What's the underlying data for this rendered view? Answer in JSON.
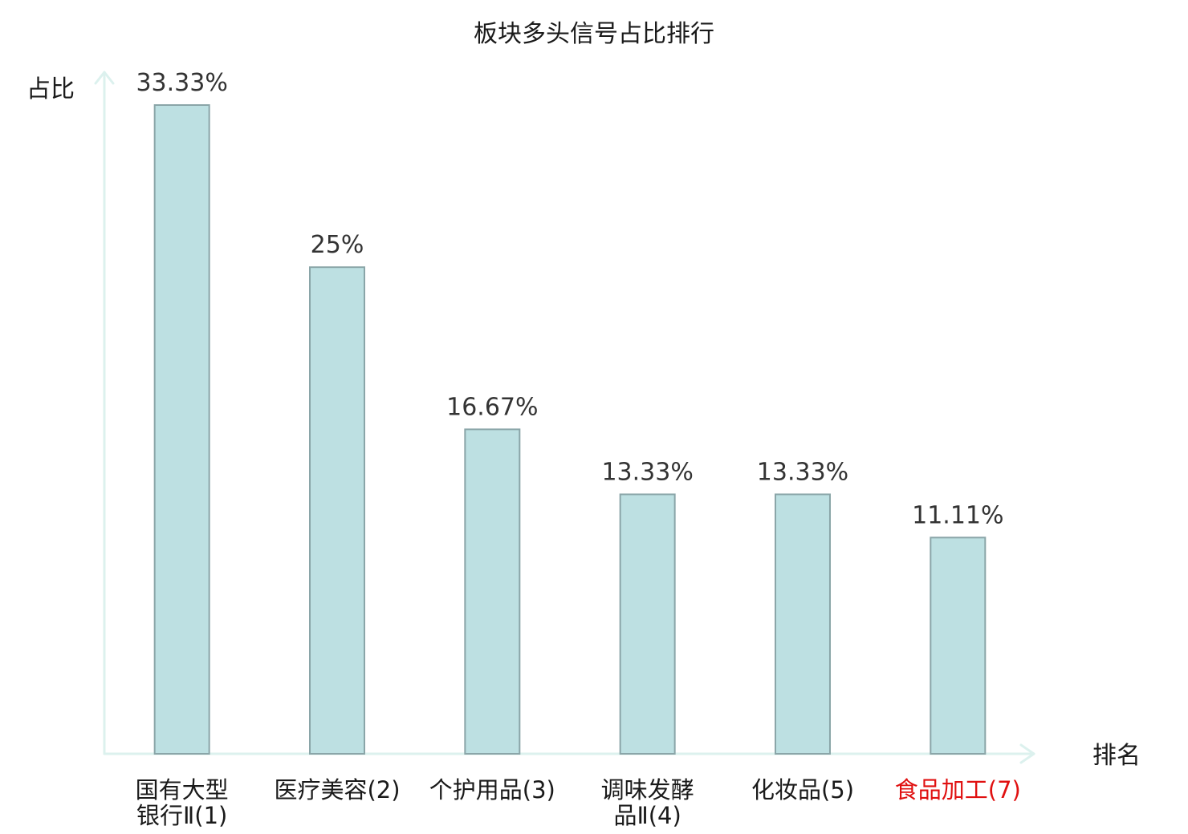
{
  "chart_data": {
    "type": "bar",
    "title": "板块多头信号占比排行",
    "xlabel": "排名",
    "ylabel": "占比",
    "categories": [
      {
        "text": "国有大型银行Ⅱ(1)",
        "lines": [
          "国有大型",
          "银行Ⅱ(1)"
        ],
        "highlight": false
      },
      {
        "text": "医疗美容(2)",
        "lines": [
          "医疗美容(2)"
        ],
        "highlight": false
      },
      {
        "text": "个护用品(3)",
        "lines": [
          "个护用品(3)"
        ],
        "highlight": false
      },
      {
        "text": "调味发酵品Ⅱ(4)",
        "lines": [
          "调味发酵",
          "品Ⅱ(4)"
        ],
        "highlight": false
      },
      {
        "text": "化妆品(5)",
        "lines": [
          "化妆品(5)"
        ],
        "highlight": false
      },
      {
        "text": "食品加工(7)",
        "lines": [
          "食品加工(7)"
        ],
        "highlight": true
      }
    ],
    "values": [
      33.33,
      25,
      16.67,
      13.33,
      13.33,
      11.11
    ],
    "value_labels": [
      "33.33%",
      "25%",
      "16.67%",
      "13.33%",
      "13.33%",
      "11.11%"
    ],
    "ylim": [
      0,
      33.33
    ],
    "grid": false,
    "colors": {
      "bar_fill": "#bde0e2",
      "bar_stroke": "#8aa5a8",
      "axis": "#dcf1ee",
      "label": "#1a1a1a",
      "highlight": "#e01010"
    }
  }
}
